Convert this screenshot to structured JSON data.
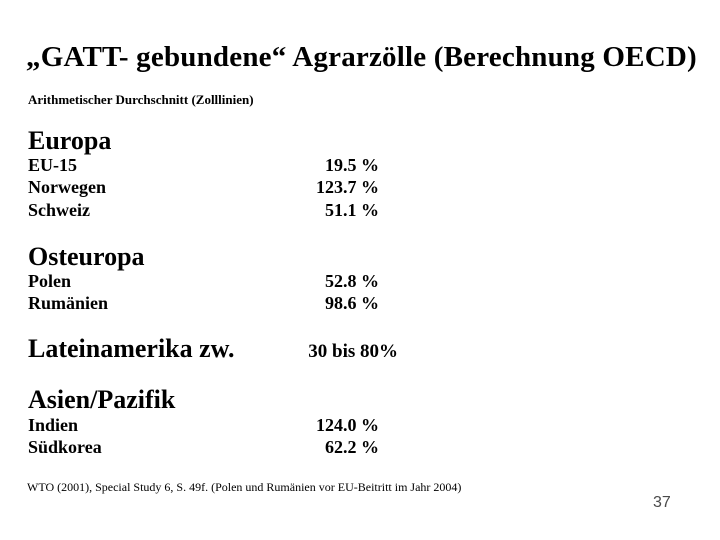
{
  "slide": {
    "title": "„GATT- gebundene“ Agrarzölle (Berechnung OECD)",
    "subtitle": "Arithmetischer Durchschnitt (Zolllinien)",
    "sections": [
      {
        "heading": "Europa",
        "rows": [
          {
            "label": "EU-15",
            "value": "19.5 %"
          },
          {
            "label": "Norwegen",
            "value": "123.7 %"
          },
          {
            "label": "Schweiz",
            "value": "51.1 %"
          }
        ]
      },
      {
        "heading": "Osteuropa",
        "rows": [
          {
            "label": "Polen",
            "value": "52.8 %"
          },
          {
            "label": "Rumänien",
            "value": "98.6 %"
          }
        ]
      },
      {
        "heading": "Lateinamerika zw.",
        "range_value": "30 bis 80%",
        "rows": []
      },
      {
        "heading": "Asien/Pazifik",
        "rows": [
          {
            "label": "Indien",
            "value": "124.0 %"
          },
          {
            "label": "Südkorea",
            "value": "62.2 %"
          }
        ]
      }
    ],
    "footnote": "WTO (2001), Special Study 6, S. 49f. (Polen und Rumänien vor EU-Beitritt im Jahr 2004)",
    "page_number": "37",
    "colors": {
      "background": "#ffffff",
      "text": "#000000",
      "page_number": "#4a4a4a"
    }
  }
}
